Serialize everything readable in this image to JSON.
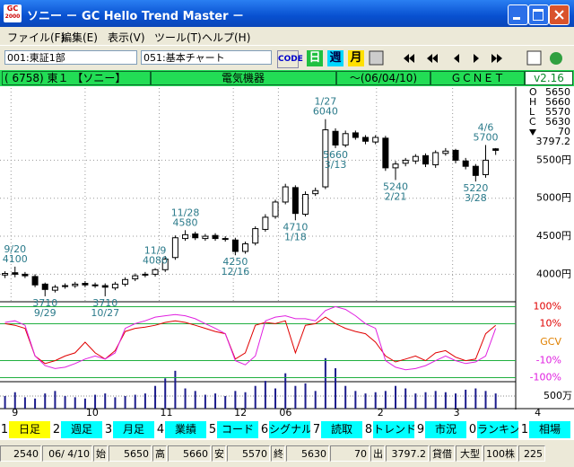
{
  "window": {
    "title": "ソニー － GC Hello Trend Master －",
    "icon": [
      "GC",
      "2000"
    ]
  },
  "menu": [
    "ファイル(F)",
    "編集(E)",
    "表示(V)",
    "ツール(T)",
    "ヘルプ(H)"
  ],
  "toolbar": {
    "market": "001:東証1部",
    "chart": "051:基本チャート",
    "code": "CODE",
    "daily": "日",
    "weekly": "週",
    "monthly": "月"
  },
  "info": {
    "stock": "( 6758) 東１ 【ソニー】",
    "sector": "電気機器",
    "date": "～(06/04/10)",
    "source": "ＧＣＮＥＴ",
    "version": "v2.16"
  },
  "quote": {
    "labels": [
      "O",
      "H",
      "L",
      "C"
    ],
    "change": 70,
    "indicator": 3797.2
  },
  "chart_data": [
    {
      "type": "candlestick",
      "open": [
        3990,
        4020,
        4000,
        3970,
        3870,
        3790,
        3840,
        3850,
        3880,
        3860,
        3850,
        3820,
        3870,
        3940,
        3990,
        4000,
        4060,
        4220,
        4470,
        4530,
        4470,
        4510,
        4470,
        4450,
        4300,
        4410,
        4590,
        4760,
        4950,
        5140,
        4790,
        5060,
        5150,
        5880,
        5700,
        5860,
        5800,
        5740,
        5790,
        5400,
        5460,
        5490,
        5560,
        5440,
        5590,
        5630,
        5490,
        5420,
        5310,
        5650
      ],
      "high": [
        4040,
        4100,
        4030,
        4000,
        3890,
        3860,
        3880,
        3900,
        3910,
        3890,
        3880,
        3900,
        3960,
        4010,
        4030,
        4080,
        4240,
        4510,
        4580,
        4560,
        4530,
        4540,
        4500,
        4480,
        4430,
        4630,
        4790,
        4980,
        5190,
        5170,
        5090,
        5140,
        6040,
        5920,
        5890,
        5890,
        5830,
        5830,
        5820,
        5490,
        5530,
        5580,
        5590,
        5630,
        5660,
        5650,
        5530,
        5450,
        5700,
        5660
      ],
      "low": [
        3950,
        3960,
        3950,
        3830,
        3710,
        3760,
        3810,
        3820,
        3830,
        3820,
        3710,
        3790,
        3840,
        3910,
        3960,
        3970,
        4030,
        4190,
        4440,
        4450,
        4440,
        4440,
        4430,
        4250,
        4270,
        4380,
        4560,
        4730,
        4920,
        4710,
        4760,
        5030,
        5120,
        5660,
        5670,
        5770,
        5710,
        5710,
        5360,
        5240,
        5420,
        5450,
        5410,
        5400,
        5560,
        5460,
        5380,
        5220,
        5270,
        5570
      ],
      "close": [
        4010,
        4000,
        3980,
        3860,
        3800,
        3830,
        3850,
        3870,
        3860,
        3850,
        3830,
        3870,
        3930,
        3980,
        4000,
        4060,
        4200,
        4480,
        4520,
        4480,
        4500,
        4470,
        4460,
        4300,
        4400,
        4600,
        4750,
        4950,
        5150,
        4800,
        5050,
        5100,
        5900,
        5700,
        5850,
        5800,
        5750,
        5800,
        5400,
        5450,
        5500,
        5550,
        5450,
        5600,
        5620,
        5500,
        5420,
        5300,
        5500,
        5630
      ],
      "color": "#000000",
      "xlim": [
        -0.5,
        51
      ],
      "xticks": [
        {
          "value": 0.6,
          "label": "9"
        },
        {
          "value": 8,
          "label": "10"
        },
        {
          "value": 15.4,
          "label": "11"
        },
        {
          "value": 22.8,
          "label": "12"
        },
        {
          "value": 27.3,
          "label": "06"
        },
        {
          "value": 37.1,
          "label": "2"
        },
        {
          "value": 44.7,
          "label": "3"
        },
        {
          "value": 52.8,
          "label": "4"
        }
      ],
      "ylim": [
        3650,
        6450
      ],
      "yticks": [
        {
          "value": 4000,
          "label": "4000円"
        },
        {
          "value": 4500,
          "label": "4500円"
        },
        {
          "value": 5000,
          "label": "5000円"
        },
        {
          "value": 5500,
          "label": "5500円"
        }
      ],
      "grid": true,
      "annotation_color": "#2a7a8a",
      "annotations": [
        {
          "label": "9/20",
          "value": 4100
        },
        {
          "label": "9/29",
          "value": 3710
        },
        {
          "label": "10/27",
          "value": 3710
        },
        {
          "label": "11/9",
          "value": 4080
        },
        {
          "label": "11/28",
          "value": 4580
        },
        {
          "label": "12/16",
          "value": 4250
        },
        {
          "label": "1/18",
          "value": 4710
        },
        {
          "label": "1/27",
          "value": 6040
        },
        {
          "label": "2/21",
          "value": 5240
        },
        {
          "label": "3/13",
          "value": 5660
        },
        {
          "label": "3/28",
          "value": 5220
        },
        {
          "label": "4/6",
          "value": 5700
        }
      ]
    },
    {
      "type": "line",
      "label": "GCV",
      "scale": "symlog",
      "ylim": [
        -150,
        150
      ],
      "yticks": [
        {
          "value": 100,
          "label": "100%"
        },
        {
          "value": 10,
          "label": "10%"
        },
        {
          "value": -10,
          "label": "-10%"
        },
        {
          "value": -100,
          "label": "-100%"
        }
      ],
      "series": [
        {
          "color": "#e00000",
          "values": [
            10,
            8,
            5,
            -5,
            -15,
            -10,
            -5,
            -3,
            0,
            -3,
            -8,
            -2,
            3,
            5,
            6,
            8,
            12,
            15,
            12,
            8,
            5,
            3,
            2,
            -8,
            -3,
            8,
            12,
            10,
            15,
            -3,
            8,
            10,
            25,
            10,
            5,
            3,
            2,
            0,
            -5,
            -12,
            -8,
            -5,
            -10,
            -3,
            -2,
            -6,
            -10,
            -8,
            2,
            8
          ]
        },
        {
          "color": "#e020e0",
          "values": [
            12,
            15,
            8,
            -5,
            -20,
            -30,
            -25,
            -15,
            -8,
            -5,
            -8,
            -3,
            5,
            10,
            15,
            25,
            30,
            35,
            30,
            20,
            10,
            5,
            2,
            -10,
            -18,
            -5,
            15,
            25,
            30,
            20,
            20,
            15,
            60,
            100,
            70,
            30,
            10,
            5,
            -10,
            -25,
            -35,
            -30,
            -20,
            -10,
            -5,
            -10,
            -15,
            -12,
            -5,
            5
          ]
        }
      ]
    },
    {
      "type": "bar",
      "color": "#1c1c8c",
      "values": [
        500,
        650,
        450,
        400,
        600,
        700,
        500,
        450,
        400,
        550,
        600,
        450,
        500,
        550,
        600,
        900,
        1200,
        1500,
        800,
        700,
        550,
        600,
        500,
        700,
        650,
        900,
        1100,
        800,
        1400,
        900,
        1000,
        700,
        2000,
        1600,
        900,
        700,
        600,
        650,
        700,
        900,
        800,
        600,
        650,
        700,
        650,
        600,
        750,
        800,
        700,
        600
      ],
      "ylim": [
        0,
        2100
      ],
      "yticks": [
        {
          "value": 500,
          "label": "500万"
        }
      ]
    }
  ],
  "tabs": [
    {
      "key": "1",
      "label": "日足"
    },
    {
      "key": "2",
      "label": "週足"
    },
    {
      "key": "3",
      "label": "月足"
    },
    {
      "key": "4",
      "label": "業績"
    },
    {
      "key": "5",
      "label": "コード"
    },
    {
      "key": "6",
      "label": "シグナル"
    },
    {
      "key": "7",
      "label": "読取"
    },
    {
      "key": "8",
      "label": "トレンド"
    },
    {
      "key": "9",
      "label": "市況"
    },
    {
      "key": "0",
      "label": "ランキング"
    },
    {
      "key": "1",
      "label": "相場"
    }
  ],
  "status": {
    "number": 2540,
    "date": "06/ 4/10",
    "open": "始",
    "high": "高",
    "low": "安",
    "close": "終",
    "out": "出",
    "margin": "貸借",
    "size": "大型",
    "unit": "100株",
    "index": "225"
  }
}
